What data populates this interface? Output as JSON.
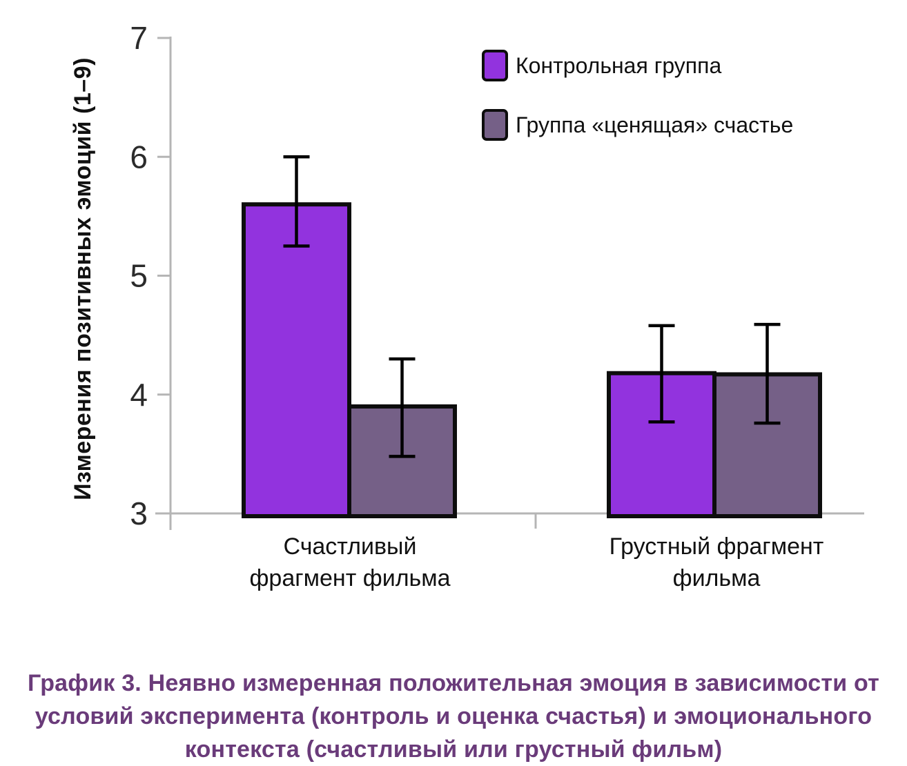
{
  "figure": {
    "caption": {
      "lines": [
        "График 3. Неявно измеренная положительная эмоция в зависимости от",
        "условий эксперимента (контроль и оценка счастья) и эмоционального",
        "контекста (счастливый или грустный фильм)"
      ],
      "color": "#6A3B7A"
    }
  },
  "chart_data": {
    "type": "bar",
    "title": "",
    "categories": [
      "Счастливый фрагмент фильма",
      "Грустный фрагмент фильма"
    ],
    "categories_lines": [
      [
        "Счастливый",
        "фрагмент фильма"
      ],
      [
        "Грустный фрагмент",
        "фильма"
      ]
    ],
    "series": [
      {
        "name": "Контрольная группа",
        "color": "#9233DE",
        "values": [
          5.6,
          4.18
        ],
        "error_low": [
          5.25,
          3.77
        ],
        "error_high": [
          6.0,
          4.58
        ]
      },
      {
        "name": "Группа «ценящая» счастье",
        "color": "#756087",
        "values": [
          3.9,
          4.17
        ],
        "error_low": [
          3.48,
          3.76
        ],
        "error_high": [
          4.3,
          4.59
        ]
      }
    ],
    "xlabel": "",
    "ylabel": "Измерения позитивных эмоций (1–9)",
    "ylim": [
      3,
      7
    ],
    "yticks": [
      3,
      4,
      5,
      6,
      7
    ],
    "legend_position": "top-right",
    "grid": false,
    "error_bar_color": "#000000",
    "bar_outline_color": "#0d0d0d",
    "axis_color": "#b5b5b5",
    "tick_label_color": "#2b2b2b"
  }
}
